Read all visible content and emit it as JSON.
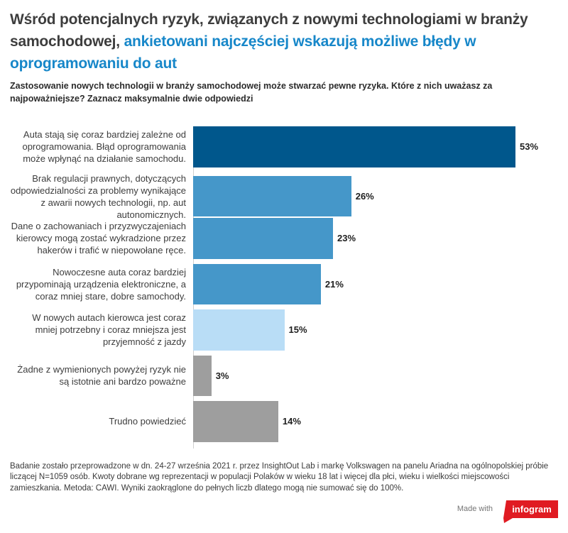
{
  "page": {
    "title_part1": "Wśród potencjalnych ryzyk, związanych z nowymi technologiami w branży samochodowej, ",
    "title_part2": "ankietowani najczęściej wskazują możliwe błędy w oprogramowaniu do aut",
    "subtitle": "Zastosowanie nowych technologii w branży samochodowej może stwarzać pewne ryzyka. Które z nich uważasz za najpoważniejsze? Zaznacz maksymalnie dwie odpowiedzi",
    "footer_note": "Badanie zostało przeprowadzone w dn. 24-27 września 2021 r. przez InsightOut Lab i markę Volkswagen na panelu Ariadna na ogólnopolskiej próbie liczącej N=1059 osób. Kwoty dobrane wg reprezentacji w populacji Polaków w wieku 18 lat i więcej dla płci, wieku i wielkości miejscowości zamieszkania. Metoda: CAWI. Wyniki zaokrąglone do pełnych liczb dlatego mogą nie sumować się do 100%.",
    "made_with": "Made with",
    "badge_label": "infogram"
  },
  "colors": {
    "title_accent": "#1787c9",
    "badge_red": "#e01b22",
    "bar_dark_blue": "#00578c",
    "bar_medium_blue": "#4597c9",
    "bar_light_blue": "#b9ddf6",
    "bar_gray": "#9e9e9e"
  },
  "chart_data": {
    "type": "bar",
    "orientation": "horizontal",
    "title": "Wśród potencjalnych ryzyk, związanych z nowymi technologiami w branży samochodowej, ankietowani najczęściej wskazują możliwe błędy w oprogramowaniu do aut",
    "subtitle": "Zastosowanie nowych technologii w branży samochodowej może stwarzać pewne ryzyka. Które z nich uważasz za najpoważniejsze? Zaznacz maksymalnie dwie odpowiedzi",
    "categories": [
      "Auta stają się coraz bardziej zależne od oprogramowania. Błąd oprogramowania może wpłynąć na działanie samochodu.",
      "Brak regulacji prawnych, dotyczących odpowiedzialności za problemy wynikające z awarii nowych technologii, np. aut autonomicznych.",
      "Dane o zachowaniach i przyzwyczajeniach kierowcy mogą zostać wykradzione przez hakerów i trafić w niepowołane ręce.",
      "Nowoczesne auta coraz bardziej przypominają urządzenia elektroniczne, a coraz mniej stare, dobre samochody.",
      "W nowych autach kierowca jest coraz mniej potrzebny i coraz mniejsza jest przyjemność z jazdy",
      "Żadne z wymienionych powyżej ryzyk nie są istotnie ani bardzo poważne",
      "Trudno powiedzieć"
    ],
    "values": [
      53,
      26,
      23,
      21,
      15,
      3,
      14
    ],
    "value_labels": [
      "53%",
      "26%",
      "23%",
      "21%",
      "15%",
      "3%",
      "14%"
    ],
    "unit": "%",
    "xlabel": "",
    "ylabel": "",
    "xlim": [
      0,
      60
    ],
    "grid": false,
    "legend": false,
    "bar_colors": [
      "#00578c",
      "#4597c9",
      "#4597c9",
      "#4597c9",
      "#b9ddf6",
      "#9e9e9e",
      "#9e9e9e"
    ]
  }
}
